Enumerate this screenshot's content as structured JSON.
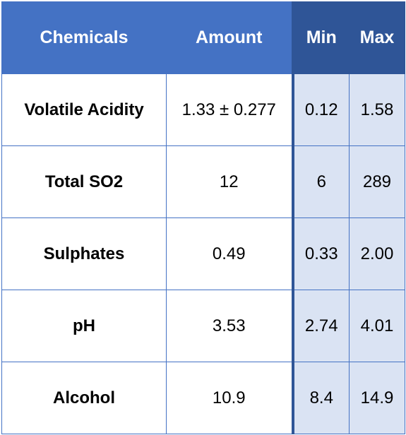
{
  "headers": {
    "chemicals": "Chemicals",
    "amount": "Amount",
    "min": "Min",
    "max": "Max"
  },
  "rows": [
    {
      "name": "Volatile Acidity",
      "amount": "1.33 ± 0.277",
      "min": "0.12",
      "max": "1.58"
    },
    {
      "name": "Total SO2",
      "amount": "12",
      "min": "6",
      "max": "289"
    },
    {
      "name": "Sulphates",
      "amount": "0.49",
      "min": "0.33",
      "max": "2.00"
    },
    {
      "name": "pH",
      "amount": "3.53",
      "min": "2.74",
      "max": "4.01"
    },
    {
      "name": "Alcohol",
      "amount": "10.9",
      "min": "8.4",
      "max": "14.9"
    }
  ],
  "colors": {
    "header": "#4472c4",
    "header_dark": "#2f5597",
    "range_fill": "#dae3f3"
  }
}
